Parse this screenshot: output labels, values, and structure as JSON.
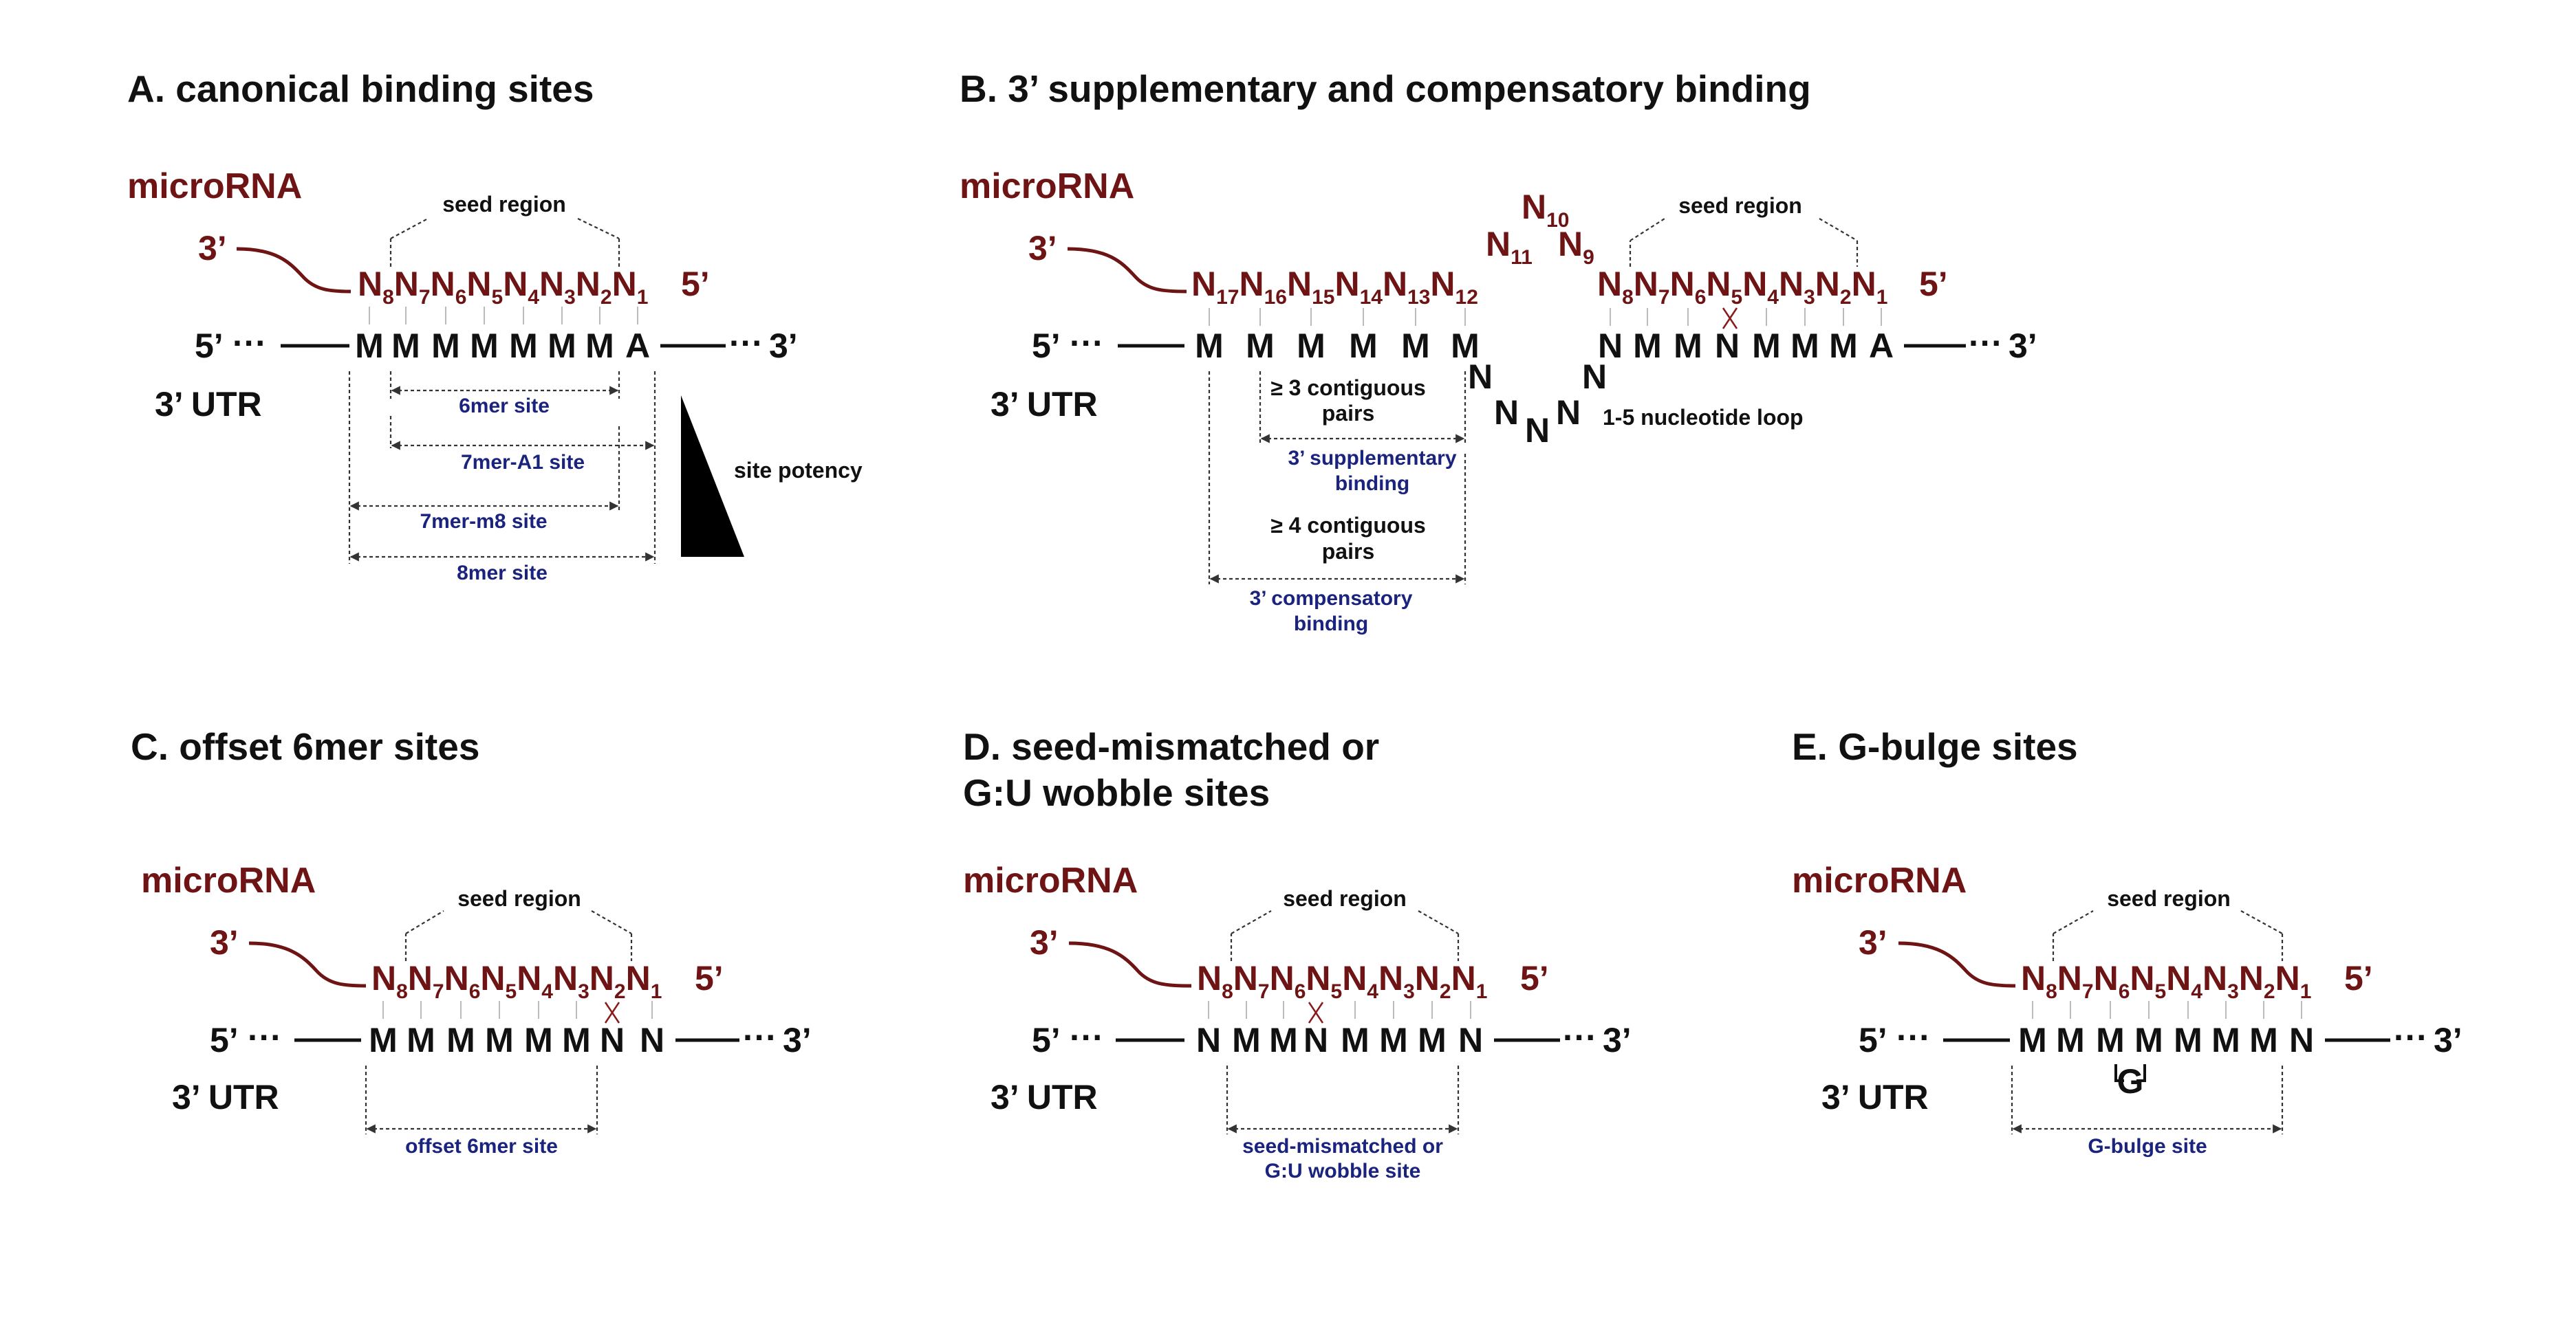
{
  "common": {
    "mirna_label": "microRNA",
    "utr_label": "3’ UTR",
    "three_prime": "3’",
    "five_prime": "5’",
    "dots": "···",
    "seed_region": "seed region"
  },
  "panel_a": {
    "title": "A. canonical binding sites",
    "mirna": [
      "8",
      "7",
      "6",
      "5",
      "4",
      "3",
      "2",
      "1"
    ],
    "target": [
      "M",
      "M",
      "M",
      "M",
      "M",
      "M",
      "M",
      "A"
    ],
    "sites": [
      "6mer site",
      "7mer-A1 site",
      "7mer-m8 site",
      "8mer site"
    ],
    "potency": "site potency"
  },
  "panel_b": {
    "title": "B. 3’ supplementary and compensatory binding",
    "mirna_left": [
      "17",
      "16",
      "15",
      "14",
      "13",
      "12"
    ],
    "loop_mirna": [
      "11",
      "10",
      "9"
    ],
    "mirna_right": [
      "8",
      "7",
      "6",
      "5",
      "4",
      "3",
      "2",
      "1"
    ],
    "target_left": [
      "M",
      "M",
      "M",
      "M",
      "M",
      "M"
    ],
    "target_right": [
      "N",
      "M",
      "M",
      "N",
      "M",
      "M",
      "M",
      "A"
    ],
    "target_loop": [
      "N",
      "N",
      "N",
      "N",
      "N"
    ],
    "loop_note": "1-5 nucleotide loop",
    "supp_pairs": [
      "≥ 3 contiguous",
      "pairs"
    ],
    "supp_label": [
      "3’ supplementary",
      "binding"
    ],
    "comp_pairs": [
      "≥ 4 contiguous",
      "pairs"
    ],
    "comp_label": [
      "3’ compensatory",
      "binding"
    ]
  },
  "panel_c": {
    "title": "C. offset 6mer sites",
    "target": [
      "M",
      "M",
      "M",
      "M",
      "M",
      "M",
      "N",
      "N"
    ],
    "site": "offset 6mer site"
  },
  "panel_d": {
    "title_lines": [
      "D. seed-mismatched or",
      "G:U wobble sites"
    ],
    "target": [
      "N",
      "M",
      "M",
      "N",
      "M",
      "M",
      "M",
      "N"
    ],
    "site": [
      "seed-mismatched or",
      "G:U wobble site"
    ]
  },
  "panel_e": {
    "title": "E. G-bulge sites",
    "target": [
      "M",
      "M",
      "M",
      "M",
      "M",
      "M",
      "M",
      "N"
    ],
    "bulge": "G",
    "site": "G-bulge site"
  }
}
